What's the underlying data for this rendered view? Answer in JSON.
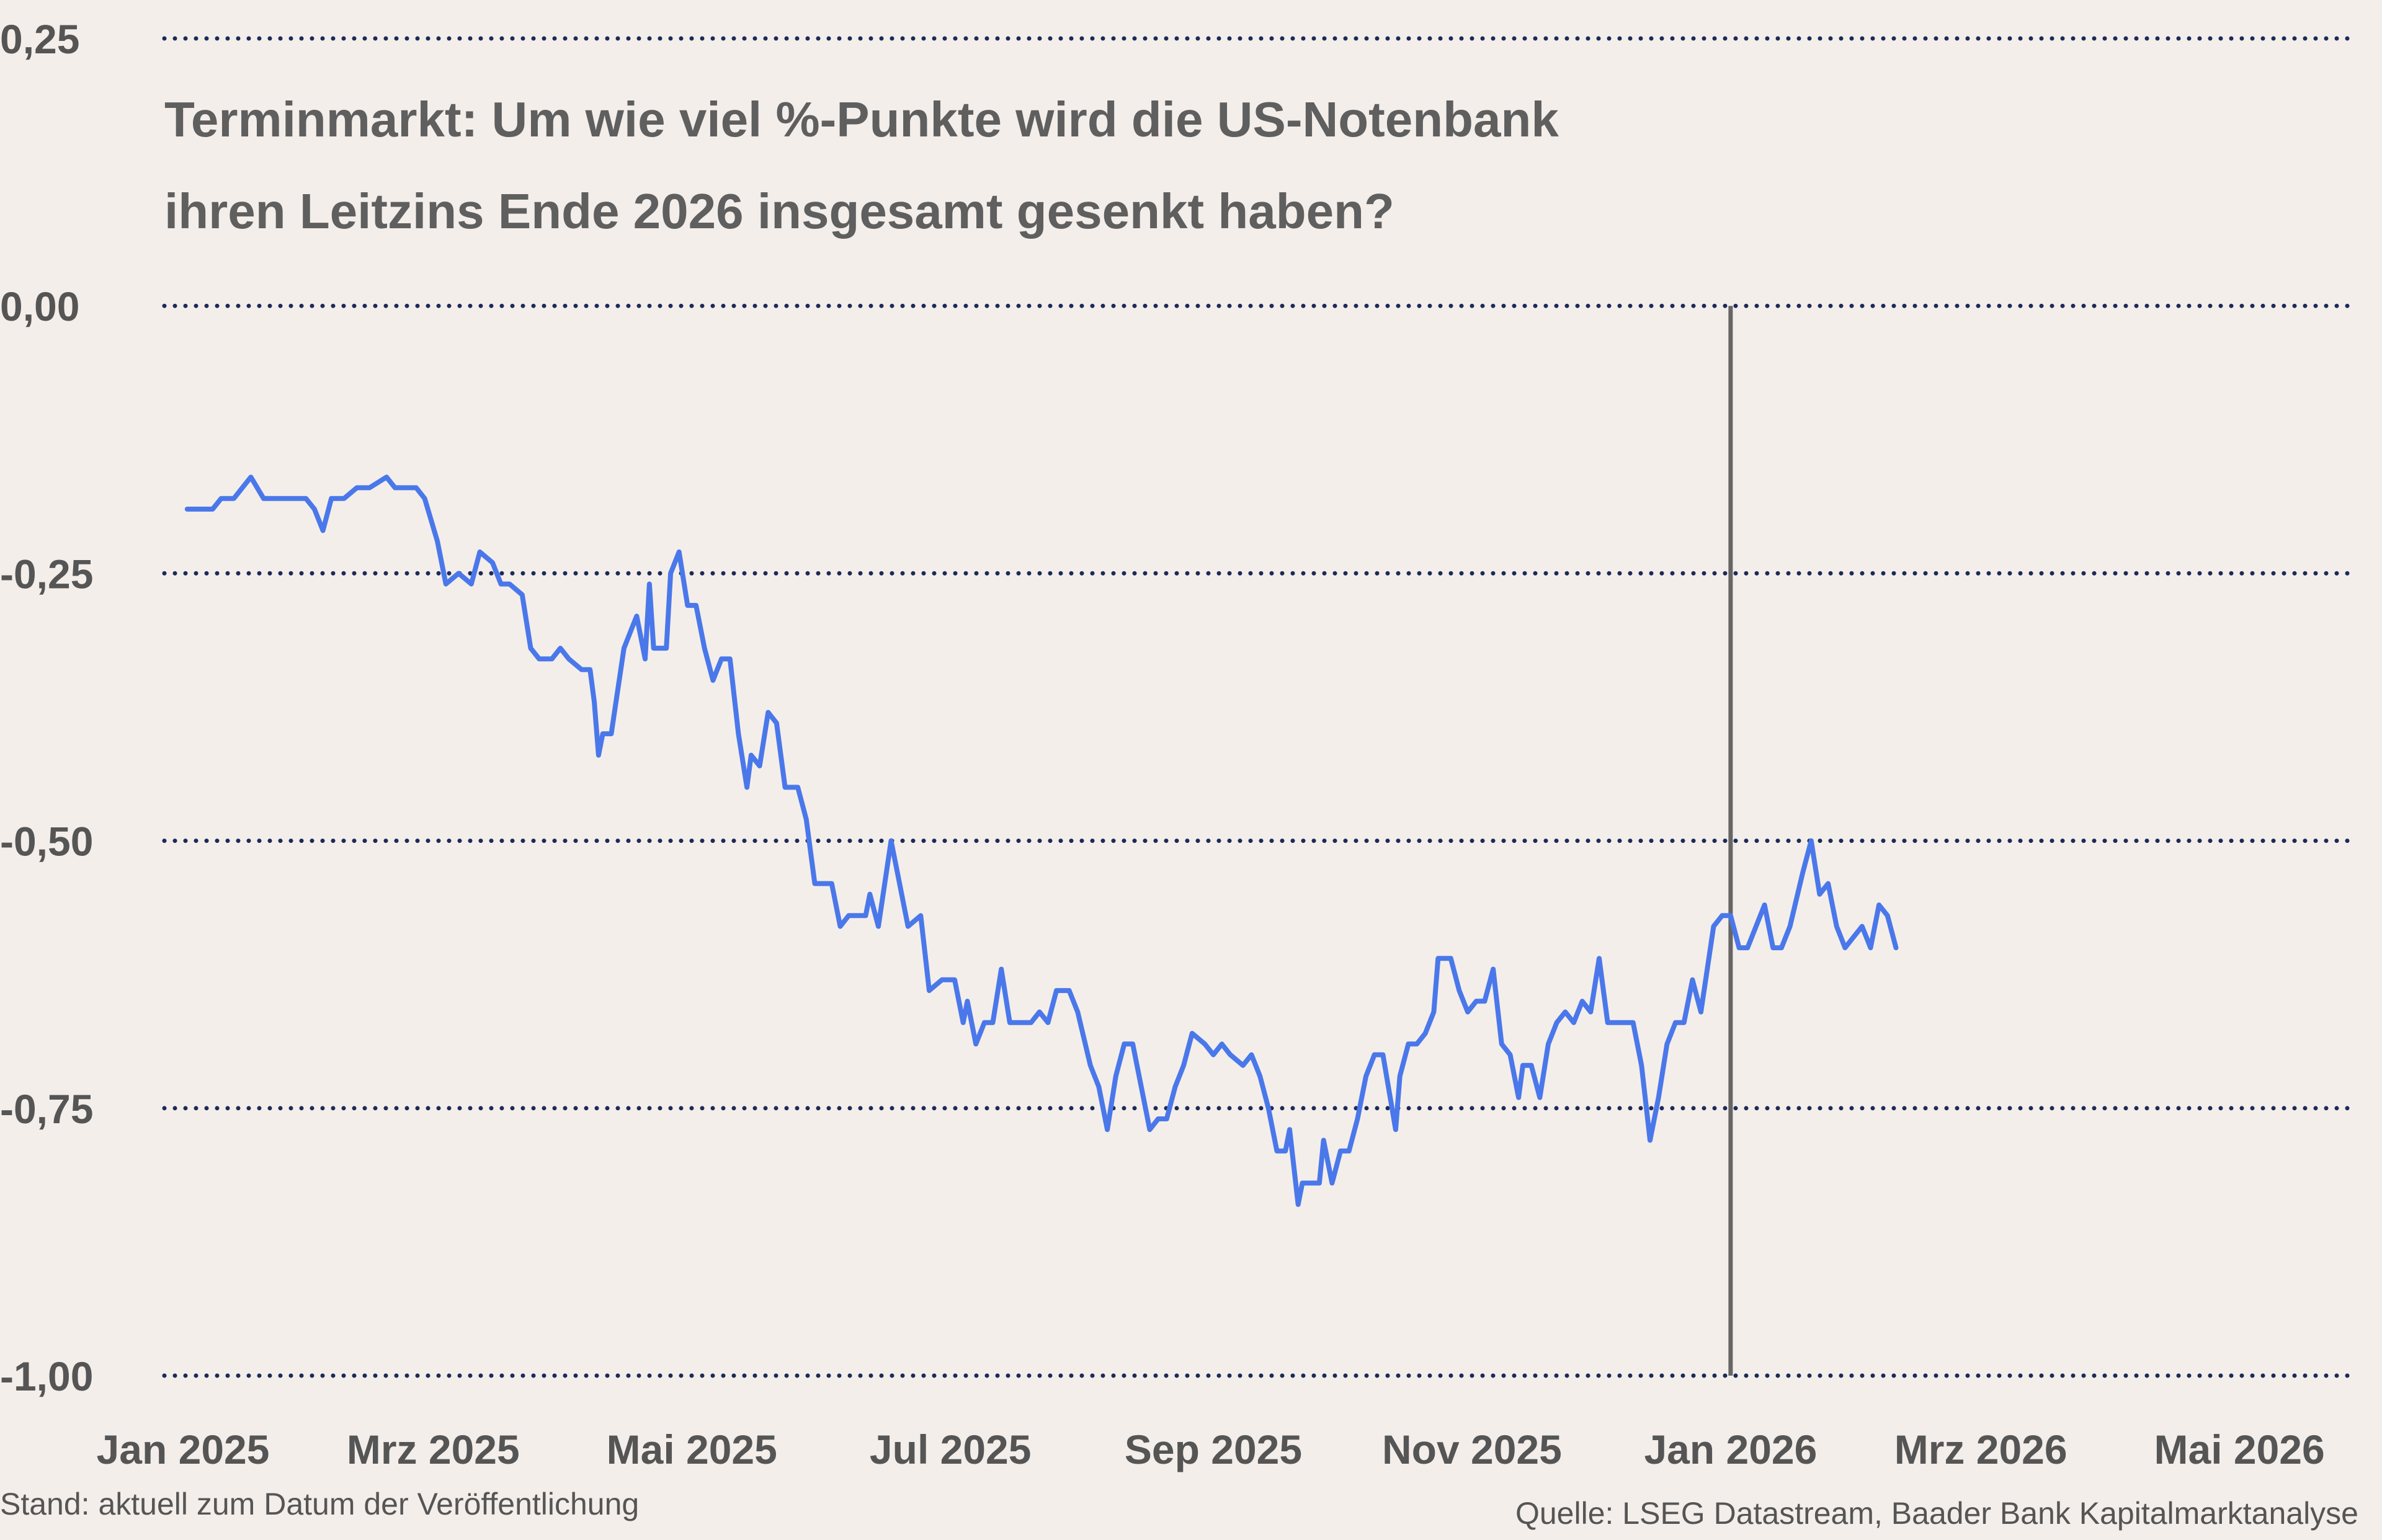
{
  "chart_data": {
    "type": "line",
    "title_lines": [
      "Terminmarkt: Um wie viel %-Punkte wird die US-Notenbank",
      "ihren Leitzins Ende 2026 insgesamt gesenkt haben?"
    ],
    "xlabel": "",
    "ylabel": "",
    "ylim": [
      -1.0,
      0.25
    ],
    "yticks": [
      "0,25",
      "0,00",
      "-0,25",
      "-0,50",
      "-0,75",
      "-1,00"
    ],
    "ytick_values": [
      0.25,
      0.0,
      -0.25,
      -0.5,
      -0.75,
      -1.0
    ],
    "xlim": [
      "2025-01-01",
      "2026-05-20"
    ],
    "xticks": [
      {
        "label": "Jan 2025",
        "date": "2025-01-01"
      },
      {
        "label": "Mrz 2025",
        "date": "2025-03-01"
      },
      {
        "label": "Mai 2025",
        "date": "2025-05-01"
      },
      {
        "label": "Jul 2025",
        "date": "2025-07-01"
      },
      {
        "label": "Sep 2025",
        "date": "2025-09-01"
      },
      {
        "label": "Nov 2025",
        "date": "2025-11-01"
      },
      {
        "label": "Jan 2026",
        "date": "2026-01-01"
      },
      {
        "label": "Mrz 2026",
        "date": "2026-03-01"
      },
      {
        "label": "Mai 2026",
        "date": "2026-05-01"
      }
    ],
    "grid": "horizontal dotted",
    "vertical_marker": {
      "date": "2026-01-01",
      "y_from": -1.0,
      "y_to": 0.0
    },
    "series": [
      {
        "color": "#4a78ea",
        "points": [
          [
            "2025-01-02",
            -0.19
          ],
          [
            "2025-01-08",
            -0.19
          ],
          [
            "2025-01-10",
            -0.18
          ],
          [
            "2025-01-13",
            -0.18
          ],
          [
            "2025-01-15",
            -0.17
          ],
          [
            "2025-01-17",
            -0.16
          ],
          [
            "2025-01-20",
            -0.18
          ],
          [
            "2025-01-27",
            -0.18
          ],
          [
            "2025-01-30",
            -0.18
          ],
          [
            "2025-02-01",
            -0.19
          ],
          [
            "2025-02-03",
            -0.21
          ],
          [
            "2025-02-05",
            -0.18
          ],
          [
            "2025-02-08",
            -0.18
          ],
          [
            "2025-02-11",
            -0.17
          ],
          [
            "2025-02-14",
            -0.17
          ],
          [
            "2025-02-18",
            -0.16
          ],
          [
            "2025-02-20",
            -0.17
          ],
          [
            "2025-02-25",
            -0.17
          ],
          [
            "2025-02-27",
            -0.18
          ],
          [
            "2025-03-02",
            -0.22
          ],
          [
            "2025-03-04",
            -0.26
          ],
          [
            "2025-03-07",
            -0.25
          ],
          [
            "2025-03-10",
            -0.26
          ],
          [
            "2025-03-12",
            -0.23
          ],
          [
            "2025-03-15",
            -0.24
          ],
          [
            "2025-03-17",
            -0.26
          ],
          [
            "2025-03-19",
            -0.26
          ],
          [
            "2025-03-22",
            -0.27
          ],
          [
            "2025-03-24",
            -0.32
          ],
          [
            "2025-03-26",
            -0.33
          ],
          [
            "2025-03-29",
            -0.33
          ],
          [
            "2025-03-31",
            -0.32
          ],
          [
            "2025-04-02",
            -0.33
          ],
          [
            "2025-04-05",
            -0.34
          ],
          [
            "2025-04-07",
            -0.34
          ],
          [
            "2025-04-08",
            -0.37
          ],
          [
            "2025-04-09",
            -0.42
          ],
          [
            "2025-04-10",
            -0.4
          ],
          [
            "2025-04-12",
            -0.4
          ],
          [
            "2025-04-15",
            -0.32
          ],
          [
            "2025-04-17",
            -0.3
          ],
          [
            "2025-04-18",
            -0.29
          ],
          [
            "2025-04-20",
            -0.33
          ],
          [
            "2025-04-21",
            -0.26
          ],
          [
            "2025-04-22",
            -0.32
          ],
          [
            "2025-04-25",
            -0.32
          ],
          [
            "2025-04-26",
            -0.25
          ],
          [
            "2025-04-28",
            -0.23
          ],
          [
            "2025-04-30",
            -0.28
          ],
          [
            "2025-05-02",
            -0.28
          ],
          [
            "2025-05-04",
            -0.32
          ],
          [
            "2025-05-06",
            -0.35
          ],
          [
            "2025-05-08",
            -0.33
          ],
          [
            "2025-05-10",
            -0.33
          ],
          [
            "2025-05-12",
            -0.4
          ],
          [
            "2025-05-14",
            -0.45
          ],
          [
            "2025-05-15",
            -0.42
          ],
          [
            "2025-05-17",
            -0.43
          ],
          [
            "2025-05-19",
            -0.38
          ],
          [
            "2025-05-21",
            -0.39
          ],
          [
            "2025-05-23",
            -0.45
          ],
          [
            "2025-05-26",
            -0.45
          ],
          [
            "2025-05-28",
            -0.48
          ],
          [
            "2025-05-30",
            -0.54
          ],
          [
            "2025-06-03",
            -0.54
          ],
          [
            "2025-06-05",
            -0.58
          ],
          [
            "2025-06-07",
            -0.57
          ],
          [
            "2025-06-11",
            -0.57
          ],
          [
            "2025-06-12",
            -0.55
          ],
          [
            "2025-06-14",
            -0.58
          ],
          [
            "2025-06-17",
            -0.5
          ],
          [
            "2025-06-19",
            -0.54
          ],
          [
            "2025-06-21",
            -0.58
          ],
          [
            "2025-06-24",
            -0.57
          ],
          [
            "2025-06-26",
            -0.64
          ],
          [
            "2025-06-29",
            -0.63
          ],
          [
            "2025-07-02",
            -0.63
          ],
          [
            "2025-07-04",
            -0.67
          ],
          [
            "2025-07-05",
            -0.65
          ],
          [
            "2025-07-07",
            -0.69
          ],
          [
            "2025-07-09",
            -0.67
          ],
          [
            "2025-07-11",
            -0.67
          ],
          [
            "2025-07-13",
            -0.62
          ],
          [
            "2025-07-15",
            -0.67
          ],
          [
            "2025-07-20",
            -0.67
          ],
          [
            "2025-07-22",
            -0.66
          ],
          [
            "2025-07-24",
            -0.67
          ],
          [
            "2025-07-26",
            -0.64
          ],
          [
            "2025-07-29",
            -0.64
          ],
          [
            "2025-07-31",
            -0.66
          ],
          [
            "2025-08-03",
            -0.71
          ],
          [
            "2025-08-05",
            -0.73
          ],
          [
            "2025-08-07",
            -0.77
          ],
          [
            "2025-08-09",
            -0.72
          ],
          [
            "2025-08-11",
            -0.69
          ],
          [
            "2025-08-13",
            -0.69
          ],
          [
            "2025-08-15",
            -0.73
          ],
          [
            "2025-08-17",
            -0.77
          ],
          [
            "2025-08-19",
            -0.76
          ],
          [
            "2025-08-21",
            -0.76
          ],
          [
            "2025-08-23",
            -0.73
          ],
          [
            "2025-08-25",
            -0.71
          ],
          [
            "2025-08-27",
            -0.68
          ],
          [
            "2025-08-30",
            -0.69
          ],
          [
            "2025-09-01",
            -0.7
          ],
          [
            "2025-09-03",
            -0.69
          ],
          [
            "2025-09-05",
            -0.7
          ],
          [
            "2025-09-08",
            -0.71
          ],
          [
            "2025-09-10",
            -0.7
          ],
          [
            "2025-09-12",
            -0.72
          ],
          [
            "2025-09-14",
            -0.75
          ],
          [
            "2025-09-16",
            -0.79
          ],
          [
            "2025-09-18",
            -0.79
          ],
          [
            "2025-09-19",
            -0.77
          ],
          [
            "2025-09-21",
            -0.84
          ],
          [
            "2025-09-22",
            -0.82
          ],
          [
            "2025-09-26",
            -0.82
          ],
          [
            "2025-09-27",
            -0.78
          ],
          [
            "2025-09-29",
            -0.82
          ],
          [
            "2025-10-01",
            -0.79
          ],
          [
            "2025-10-03",
            -0.79
          ],
          [
            "2025-10-05",
            -0.76
          ],
          [
            "2025-10-07",
            -0.72
          ],
          [
            "2025-10-09",
            -0.7
          ],
          [
            "2025-10-11",
            -0.7
          ],
          [
            "2025-10-14",
            -0.77
          ],
          [
            "2025-10-15",
            -0.72
          ],
          [
            "2025-10-17",
            -0.69
          ],
          [
            "2025-10-19",
            -0.69
          ],
          [
            "2025-10-21",
            -0.68
          ],
          [
            "2025-10-23",
            -0.66
          ],
          [
            "2025-10-24",
            -0.61
          ],
          [
            "2025-10-27",
            -0.61
          ],
          [
            "2025-10-29",
            -0.64
          ],
          [
            "2025-10-31",
            -0.66
          ],
          [
            "2025-11-02",
            -0.65
          ],
          [
            "2025-11-04",
            -0.65
          ],
          [
            "2025-11-06",
            -0.62
          ],
          [
            "2025-11-08",
            -0.69
          ],
          [
            "2025-11-10",
            -0.7
          ],
          [
            "2025-11-12",
            -0.74
          ],
          [
            "2025-11-13",
            -0.71
          ],
          [
            "2025-11-15",
            -0.71
          ],
          [
            "2025-11-17",
            -0.74
          ],
          [
            "2025-11-19",
            -0.69
          ],
          [
            "2025-11-21",
            -0.67
          ],
          [
            "2025-11-23",
            -0.66
          ],
          [
            "2025-11-25",
            -0.67
          ],
          [
            "2025-11-27",
            -0.65
          ],
          [
            "2025-11-29",
            -0.66
          ],
          [
            "2025-12-01",
            -0.61
          ],
          [
            "2025-12-03",
            -0.67
          ],
          [
            "2025-12-05",
            -0.67
          ],
          [
            "2025-12-09",
            -0.67
          ],
          [
            "2025-12-11",
            -0.71
          ],
          [
            "2025-12-13",
            -0.78
          ],
          [
            "2025-12-15",
            -0.74
          ],
          [
            "2025-12-17",
            -0.69
          ],
          [
            "2025-12-19",
            -0.67
          ],
          [
            "2025-12-21",
            -0.67
          ],
          [
            "2025-12-23",
            -0.63
          ],
          [
            "2025-12-25",
            -0.66
          ],
          [
            "2025-12-28",
            -0.58
          ],
          [
            "2025-12-30",
            -0.57
          ],
          [
            "2026-01-01",
            -0.57
          ],
          [
            "2026-01-03",
            -0.6
          ],
          [
            "2026-01-05",
            -0.6
          ],
          [
            "2026-01-07",
            -0.58
          ],
          [
            "2026-01-09",
            -0.56
          ],
          [
            "2026-01-11",
            -0.6
          ],
          [
            "2026-01-13",
            -0.6
          ],
          [
            "2026-01-15",
            -0.58
          ],
          [
            "2026-01-18",
            -0.53
          ],
          [
            "2026-01-20",
            -0.5
          ],
          [
            "2026-01-22",
            -0.55
          ],
          [
            "2026-01-24",
            -0.54
          ],
          [
            "2026-01-26",
            -0.58
          ],
          [
            "2026-01-28",
            -0.6
          ],
          [
            "2026-01-30",
            -0.59
          ],
          [
            "2026-02-01",
            -0.58
          ],
          [
            "2026-02-03",
            -0.6
          ],
          [
            "2026-02-05",
            -0.56
          ],
          [
            "2026-02-07",
            -0.57
          ],
          [
            "2026-02-09",
            -0.6
          ]
        ]
      }
    ]
  },
  "footnote_left": "Stand: aktuell zum Datum der Veröffentlichung",
  "footnote_right": "Quelle: LSEG Datastream, Baader Bank Kapitalmarktanalyse",
  "colors": {
    "background": "#f4eeea",
    "line": "#4a78ea",
    "grid": "#1c2a5a",
    "marker": "#666666",
    "text": "#555555"
  }
}
